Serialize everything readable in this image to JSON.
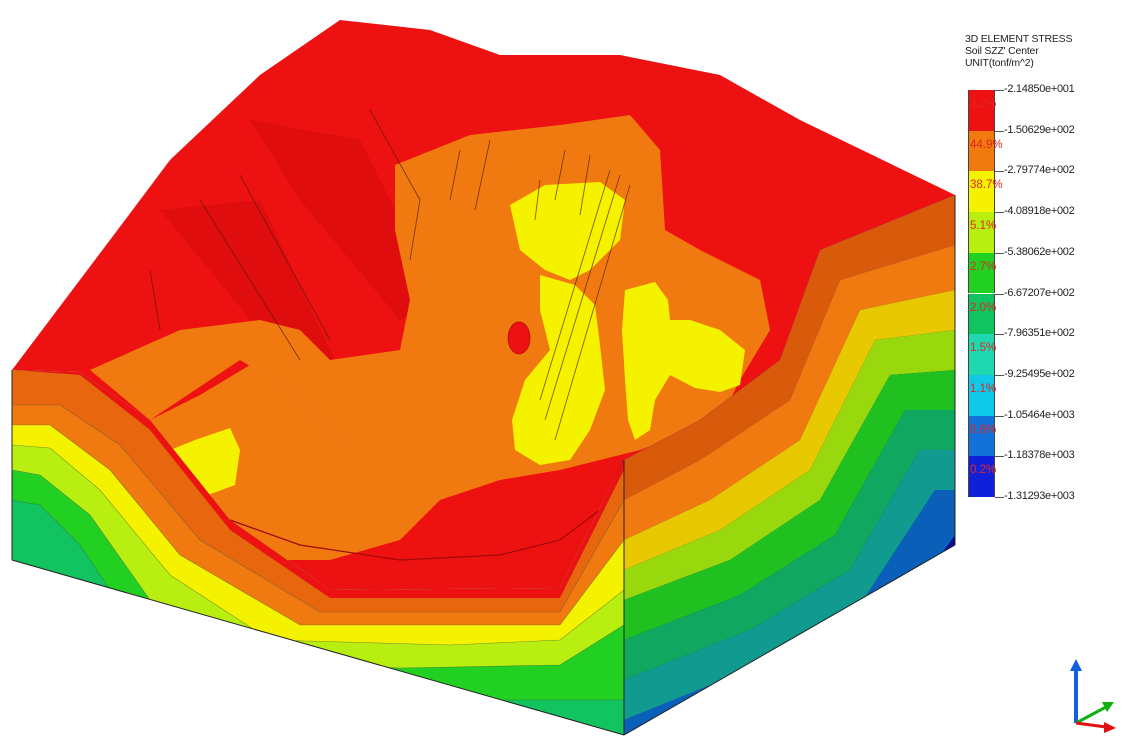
{
  "legend": {
    "title_lines": [
      "3D ELEMENT STRESS",
      "Soil SZZ' Center",
      "UNIT(tonf/m^2)"
    ],
    "ticks": [
      "-2.14850e+001",
      "-1.50629e+002",
      "-2.79774e+002",
      "-4.08918e+002",
      "-5.38062e+002",
      "-6.67207e+002",
      "-7.96351e+002",
      "-9.25495e+002",
      "-1.05464e+003",
      "-1.18378e+003",
      "-1.31293e+003"
    ],
    "bands": [
      {
        "percent": "3.2%",
        "color": "#ee1111"
      },
      {
        "percent": "44.9%",
        "color": "#f07a10"
      },
      {
        "percent": "38.7%",
        "color": "#f5f200"
      },
      {
        "percent": "5.1%",
        "color": "#b8ee10"
      },
      {
        "percent": "2.7%",
        "color": "#22d022"
      },
      {
        "percent": "2.0%",
        "color": "#12c460"
      },
      {
        "percent": "1.5%",
        "color": "#20d8b0"
      },
      {
        "percent": "1.1%",
        "color": "#10c8e8"
      },
      {
        "percent": "0.6%",
        "color": "#1272d8"
      },
      {
        "percent": "0.2%",
        "color": "#1020d8"
      }
    ]
  },
  "model": {
    "front_face_bands": [
      "#ee1111",
      "#e8660e",
      "#f07a10",
      "#f5f200",
      "#b8ee10",
      "#22d022",
      "#12c460"
    ],
    "right_face_bands": [
      "#c41010",
      "#d85a0a",
      "#f07a10",
      "#e8c800",
      "#9ad80e",
      "#20c020",
      "#10a860",
      "#109a90",
      "#0a60b8",
      "#081090"
    ]
  },
  "triad": {
    "x_axis_color": "#e01010",
    "y_axis_color": "#10b010",
    "z_axis_color": "#1060e0"
  }
}
